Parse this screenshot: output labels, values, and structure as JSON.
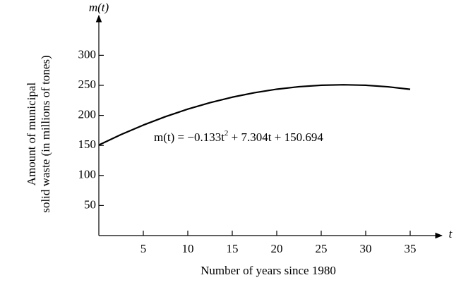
{
  "chart_data": {
    "type": "line",
    "y_axis_symbol": "m(t)",
    "x_axis_symbol": "t",
    "y_label": [
      "Amount of municipal",
      "solid waste (in millions of tones)"
    ],
    "x_label": "Number of years since 1980",
    "annotation": [
      "m(t) = −0.133t",
      "2",
      " + 7.304t + 150.694"
    ],
    "x": [
      0,
      2.5,
      5,
      7.5,
      10,
      12.5,
      15,
      17.5,
      20,
      22.5,
      25,
      27.5,
      30,
      32.5,
      35
    ],
    "series": [
      {
        "color": "#000000",
        "values": [
          150.694,
          168.123,
          183.889,
          197.993,
          210.434,
          221.213,
          230.329,
          237.783,
          243.574,
          247.703,
          250.169,
          250.973,
          250.114,
          247.593,
          243.409
        ]
      }
    ],
    "xlim": [
      0,
      38.5
    ],
    "ylim": [
      0,
      365
    ],
    "xticks": [
      5,
      10,
      15,
      20,
      25,
      30,
      35
    ],
    "yticks": [
      50,
      100,
      150,
      200,
      250,
      300
    ]
  }
}
